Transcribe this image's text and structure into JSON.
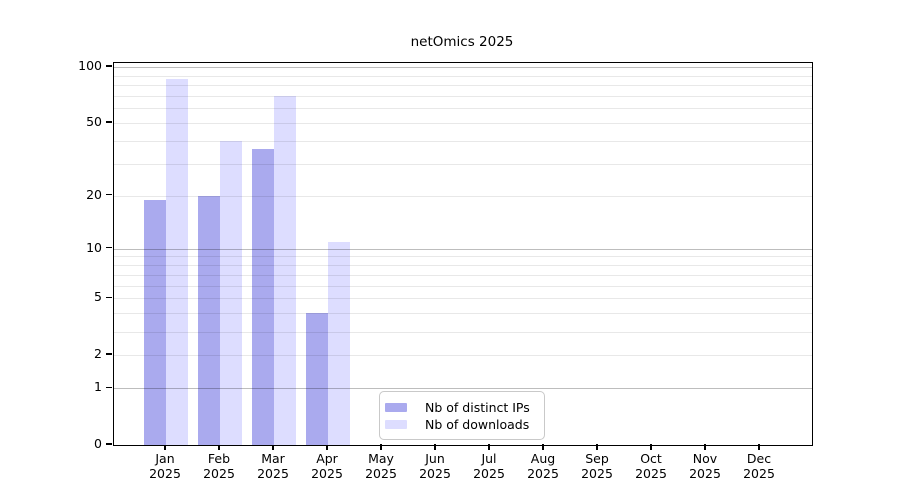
{
  "title": "netOmics 2025",
  "chart_data": {
    "type": "bar",
    "title": "netOmics 2025",
    "categories": [
      "Jan",
      "Feb",
      "Mar",
      "Apr",
      "May",
      "Jun",
      "Jul",
      "Aug",
      "Sep",
      "Oct",
      "Nov",
      "Dec"
    ],
    "category_year": "2025",
    "series": [
      {
        "name": "Nb of distinct IPs",
        "color": "#aaaaee",
        "values": [
          19,
          20,
          36,
          4,
          null,
          null,
          null,
          null,
          null,
          null,
          null,
          null
        ]
      },
      {
        "name": "Nb of downloads",
        "color": "#ddddff",
        "values": [
          86,
          40,
          70,
          11,
          null,
          null,
          null,
          null,
          null,
          null,
          null,
          null
        ]
      }
    ],
    "xlabel": "",
    "ylabel": "",
    "scale": "log1p",
    "ylim": [
      0,
      104
    ],
    "yticks": [
      0,
      1,
      2,
      5,
      10,
      20,
      50,
      100
    ],
    "grid_major": [
      1,
      10,
      100
    ],
    "grid_minor": [
      2,
      3,
      4,
      5,
      6,
      7,
      8,
      9,
      20,
      30,
      40,
      50,
      60,
      70,
      80,
      90
    ],
    "grid": "on",
    "legend_position": "inside-bottom-center"
  }
}
